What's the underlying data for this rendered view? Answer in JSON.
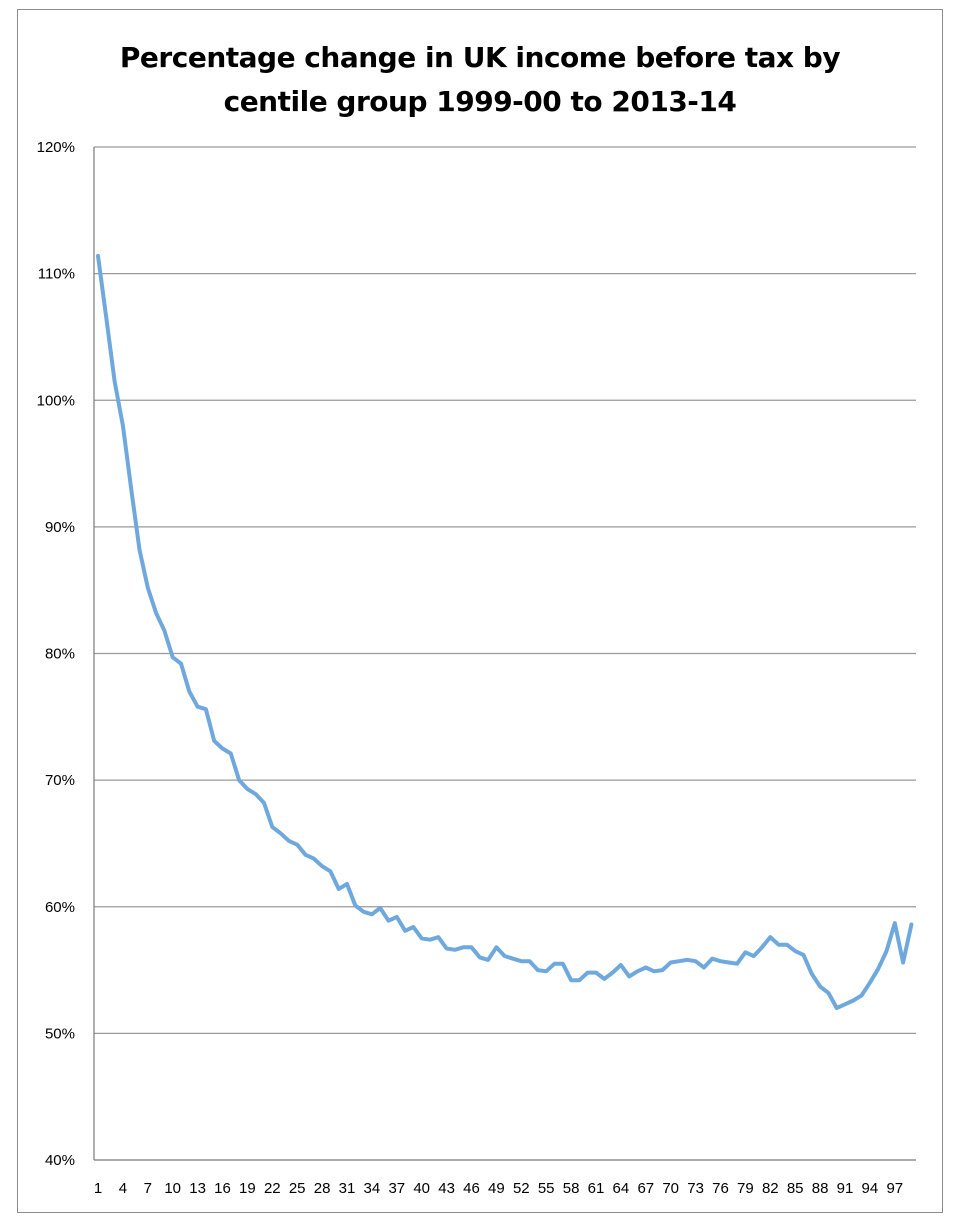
{
  "chart_data": {
    "type": "line",
    "title_lines": [
      "Percentage change in UK income before tax by",
      "centile group 1999-00 to 2013-14"
    ],
    "xlabel": "",
    "ylabel": "",
    "ylim": [
      0.4,
      1.2
    ],
    "y_ticks": [
      "40%",
      "50%",
      "60%",
      "70%",
      "80%",
      "90%",
      "100%",
      "110%",
      "120%"
    ],
    "x_tick_labels": [
      "1",
      "4",
      "7",
      "10",
      "13",
      "16",
      "19",
      "22",
      "25",
      "28",
      "31",
      "34",
      "37",
      "40",
      "43",
      "46",
      "49",
      "52",
      "55",
      "58",
      "61",
      "64",
      "67",
      "70",
      "73",
      "76",
      "79",
      "82",
      "85",
      "88",
      "91",
      "94",
      "97"
    ],
    "grid": "horizontal",
    "line_color": "#6fa8dc",
    "x": [
      1,
      2,
      3,
      4,
      5,
      6,
      7,
      8,
      9,
      10,
      11,
      12,
      13,
      14,
      15,
      16,
      17,
      18,
      19,
      20,
      21,
      22,
      23,
      24,
      25,
      26,
      27,
      28,
      29,
      30,
      31,
      32,
      33,
      34,
      35,
      36,
      37,
      38,
      39,
      40,
      41,
      42,
      43,
      44,
      45,
      46,
      47,
      48,
      49,
      50,
      51,
      52,
      53,
      54,
      55,
      56,
      57,
      58,
      59,
      60,
      61,
      62,
      63,
      64,
      65,
      66,
      67,
      68,
      69,
      70,
      71,
      72,
      73,
      74,
      75,
      76,
      77,
      78,
      79,
      80,
      81,
      82,
      83,
      84,
      85,
      86,
      87,
      88,
      89,
      90,
      91,
      92,
      93,
      94,
      95,
      96,
      97,
      98,
      99
    ],
    "values": [
      1.114,
      1.065,
      1.015,
      0.98,
      0.93,
      0.882,
      0.852,
      0.832,
      0.818,
      0.797,
      0.792,
      0.77,
      0.758,
      0.756,
      0.731,
      0.725,
      0.721,
      0.7,
      0.693,
      0.689,
      0.682,
      0.663,
      0.658,
      0.652,
      0.649,
      0.641,
      0.638,
      0.632,
      0.628,
      0.614,
      0.618,
      0.601,
      0.596,
      0.594,
      0.599,
      0.589,
      0.592,
      0.581,
      0.584,
      0.575,
      0.574,
      0.576,
      0.567,
      0.566,
      0.568,
      0.568,
      0.56,
      0.558,
      0.568,
      0.561,
      0.559,
      0.557,
      0.557,
      0.55,
      0.549,
      0.555,
      0.555,
      0.542,
      0.542,
      0.548,
      0.548,
      0.543,
      0.548,
      0.554,
      0.545,
      0.549,
      0.552,
      0.549,
      0.55,
      0.556,
      0.557,
      0.558,
      0.557,
      0.552,
      0.559,
      0.557,
      0.556,
      0.555,
      0.564,
      0.561,
      0.568,
      0.576,
      0.57,
      0.57,
      0.565,
      0.562,
      0.547,
      0.537,
      0.532,
      0.52,
      0.523,
      0.526,
      0.53,
      0.54,
      0.551,
      0.565,
      0.587,
      0.556,
      0.586
    ]
  }
}
